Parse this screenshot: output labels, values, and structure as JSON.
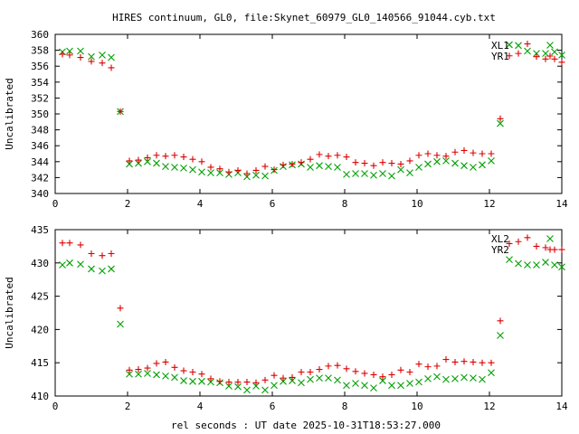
{
  "title": "HIRES continuum, GL0, file:Skynet_60979_GL0_140566_91044.cyb.txt",
  "xlabel": "rel seconds : UT date 2025-10-31T18:53:27.000",
  "colors": {
    "plus": "#dd0000",
    "cross": "#00a000",
    "axis": "#000000"
  },
  "chart_data": [
    {
      "type": "scatter",
      "ylabel": "Uncalibrated",
      "xlim": [
        0,
        14
      ],
      "ylim": [
        340,
        360
      ],
      "xticks": [
        0,
        2,
        4,
        6,
        8,
        10,
        12,
        14
      ],
      "yticks": [
        340,
        342,
        344,
        346,
        348,
        350,
        352,
        354,
        356,
        358,
        360
      ],
      "series": [
        {
          "name": "XL1",
          "marker": "cross",
          "x": [
            0.2,
            0.4,
            0.7,
            1.0,
            1.3,
            1.55,
            1.8,
            2.05,
            2.3,
            2.55,
            2.8,
            3.05,
            3.3,
            3.55,
            3.8,
            4.05,
            4.3,
            4.55,
            4.8,
            5.05,
            5.3,
            5.55,
            5.8,
            6.05,
            6.3,
            6.55,
            6.8,
            7.05,
            7.3,
            7.55,
            7.8,
            8.05,
            8.3,
            8.55,
            8.8,
            9.05,
            9.3,
            9.55,
            9.8,
            10.05,
            10.3,
            10.55,
            10.8,
            11.05,
            11.3,
            11.55,
            11.8,
            12.05,
            12.3,
            12.55,
            12.8,
            13.05,
            13.3,
            13.55,
            13.8,
            14.0
          ],
          "y": [
            357.8,
            357.9,
            357.9,
            357.2,
            357.4,
            357.1,
            350.3,
            343.7,
            343.8,
            344.0,
            343.8,
            343.4,
            343.3,
            343.2,
            343.0,
            342.7,
            342.6,
            342.6,
            342.4,
            342.6,
            342.1,
            342.3,
            342.2,
            342.9,
            343.4,
            343.6,
            343.7,
            343.3,
            343.5,
            343.4,
            343.3,
            342.4,
            342.5,
            342.5,
            342.3,
            342.5,
            342.2,
            343.0,
            342.6,
            343.3,
            343.7,
            344.0,
            344.1,
            343.8,
            343.5,
            343.3,
            343.6,
            344.1,
            348.8,
            358.7,
            358.6,
            357.9,
            357.6,
            357.6,
            357.8,
            357.4
          ]
        },
        {
          "name": "YR1",
          "marker": "plus",
          "x": [
            0.2,
            0.4,
            0.7,
            1.0,
            1.3,
            1.55,
            1.8,
            2.05,
            2.3,
            2.55,
            2.8,
            3.05,
            3.3,
            3.55,
            3.8,
            4.05,
            4.3,
            4.55,
            4.8,
            5.05,
            5.3,
            5.55,
            5.8,
            6.05,
            6.3,
            6.55,
            6.8,
            7.05,
            7.3,
            7.55,
            7.8,
            8.05,
            8.3,
            8.55,
            8.8,
            9.05,
            9.3,
            9.55,
            9.8,
            10.05,
            10.3,
            10.55,
            10.8,
            11.05,
            11.3,
            11.55,
            11.8,
            12.05,
            12.3,
            12.55,
            12.8,
            13.05,
            13.3,
            13.55,
            13.8,
            14.0
          ],
          "y": [
            357.5,
            357.4,
            357.1,
            356.6,
            356.4,
            355.8,
            350.3,
            344.1,
            344.2,
            344.5,
            344.8,
            344.7,
            344.8,
            344.6,
            344.3,
            344.0,
            343.3,
            343.1,
            342.7,
            342.9,
            342.5,
            342.9,
            343.4,
            343.0,
            343.6,
            343.7,
            343.9,
            344.3,
            344.9,
            344.7,
            344.8,
            344.6,
            343.9,
            343.8,
            343.5,
            343.9,
            343.8,
            343.7,
            344.1,
            344.8,
            345.0,
            344.8,
            344.7,
            345.2,
            345.4,
            345.1,
            345.0,
            345.0,
            349.4,
            357.3,
            357.6,
            358.8,
            357.2,
            356.9,
            356.9,
            356.5
          ]
        }
      ]
    },
    {
      "type": "scatter",
      "ylabel": "Uncalibrated",
      "xlim": [
        0,
        14
      ],
      "ylim": [
        410,
        435
      ],
      "xticks": [
        0,
        2,
        4,
        6,
        8,
        10,
        12,
        14
      ],
      "yticks": [
        410,
        415,
        420,
        425,
        430,
        435
      ],
      "series": [
        {
          "name": "XL2",
          "marker": "cross",
          "x": [
            0.2,
            0.4,
            0.7,
            1.0,
            1.3,
            1.55,
            1.8,
            2.05,
            2.3,
            2.55,
            2.8,
            3.05,
            3.3,
            3.55,
            3.8,
            4.05,
            4.3,
            4.55,
            4.8,
            5.05,
            5.3,
            5.55,
            5.8,
            6.05,
            6.3,
            6.55,
            6.8,
            7.05,
            7.3,
            7.55,
            7.8,
            8.05,
            8.3,
            8.55,
            8.8,
            9.05,
            9.3,
            9.55,
            9.8,
            10.05,
            10.3,
            10.55,
            10.8,
            11.05,
            11.3,
            11.55,
            11.8,
            12.05,
            12.3,
            12.55,
            12.8,
            13.05,
            13.3,
            13.55,
            13.8,
            14.0
          ],
          "y": [
            429.7,
            430.0,
            429.8,
            429.1,
            428.8,
            429.1,
            420.8,
            413.3,
            413.3,
            413.4,
            413.2,
            413.0,
            412.8,
            412.3,
            412.2,
            412.2,
            412.1,
            412.0,
            411.5,
            411.4,
            410.9,
            411.5,
            410.9,
            411.6,
            412.2,
            412.3,
            412.0,
            412.5,
            412.7,
            412.7,
            412.4,
            411.6,
            411.9,
            411.6,
            411.2,
            412.3,
            411.6,
            411.6,
            411.9,
            412.1,
            412.6,
            412.9,
            412.5,
            412.6,
            412.8,
            412.7,
            412.5,
            413.5,
            419.1,
            430.5,
            429.9,
            429.7,
            429.7,
            430.1,
            429.7,
            429.4
          ]
        },
        {
          "name": "YR2",
          "marker": "plus",
          "x": [
            0.2,
            0.4,
            0.7,
            1.0,
            1.3,
            1.55,
            1.8,
            2.05,
            2.3,
            2.55,
            2.8,
            3.05,
            3.3,
            3.55,
            3.8,
            4.05,
            4.3,
            4.55,
            4.8,
            5.05,
            5.3,
            5.55,
            5.8,
            6.05,
            6.3,
            6.55,
            6.8,
            7.05,
            7.3,
            7.55,
            7.8,
            8.05,
            8.3,
            8.55,
            8.8,
            9.05,
            9.3,
            9.55,
            9.8,
            10.05,
            10.3,
            10.55,
            10.8,
            11.05,
            11.3,
            11.55,
            11.8,
            12.05,
            12.3,
            12.55,
            12.8,
            13.05,
            13.3,
            13.55,
            13.8,
            14.0
          ],
          "y": [
            433.0,
            433.0,
            432.7,
            431.4,
            431.1,
            431.4,
            423.2,
            413.9,
            414.0,
            414.2,
            414.9,
            415.1,
            414.3,
            413.8,
            413.6,
            413.3,
            412.6,
            412.2,
            412.1,
            412.1,
            412.1,
            412.0,
            412.4,
            413.1,
            412.7,
            412.8,
            413.6,
            413.6,
            414.0,
            414.5,
            414.6,
            414.1,
            413.7,
            413.4,
            413.2,
            412.9,
            413.2,
            413.9,
            413.6,
            414.8,
            414.4,
            414.5,
            415.5,
            415.1,
            415.2,
            415.1,
            415.0,
            415.0,
            421.3,
            432.9,
            433.2,
            433.8,
            432.5,
            432.3,
            432.0,
            432.0
          ]
        }
      ]
    }
  ]
}
